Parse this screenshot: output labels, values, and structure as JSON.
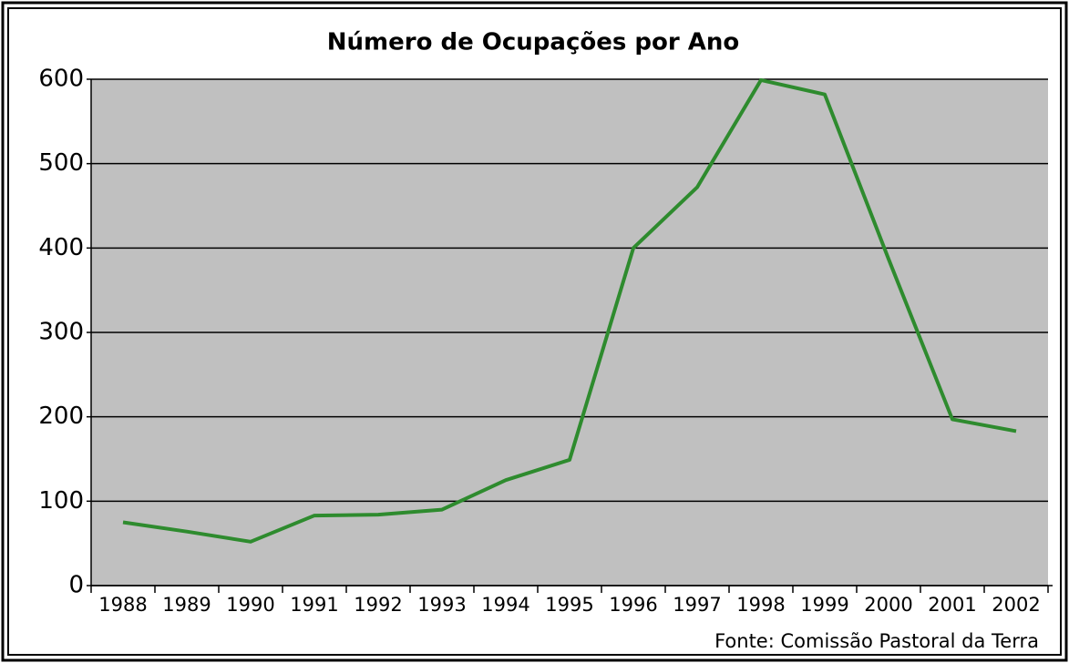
{
  "chart_data": {
    "type": "line",
    "title": "Número de Ocupações por Ano",
    "source": "Fonte: Comissão Pastoral da Terra",
    "categories": [
      "1988",
      "1989",
      "1990",
      "1991",
      "1992",
      "1993",
      "1994",
      "1995",
      "1996",
      "1997",
      "1998",
      "1999",
      "2000",
      "2001",
      "2002"
    ],
    "series": [
      {
        "name": "Ocupações",
        "color": "#2e8b2e",
        "values": [
          75,
          64,
          52,
          83,
          84,
          90,
          125,
          149,
          400,
          472,
          599,
          582,
          387,
          197,
          183
        ]
      }
    ],
    "ylim": [
      0,
      600
    ],
    "yticks": [
      0,
      100,
      200,
      300,
      400,
      500,
      600
    ],
    "grid": true
  }
}
